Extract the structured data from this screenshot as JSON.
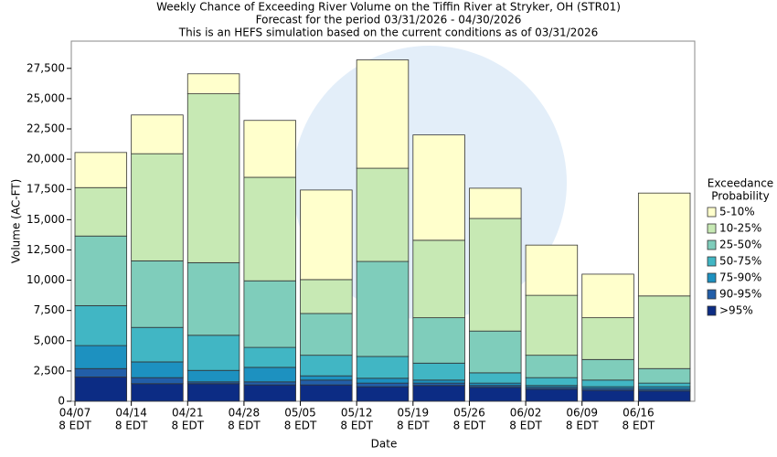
{
  "chart_data": {
    "type": "stacked_bar",
    "title": [
      "Weekly Chance of Exceeding River Volume on the Tiffin River at Stryker, OH (STR01)",
      "Forecast for the period 03/31/2026 - 04/30/2026",
      "This is an HEFS simulation based on the current conditions as of 03/31/2026"
    ],
    "xlabel": "Date",
    "ylabel": "Volume (AC-FT)",
    "legend_title": [
      "Exceedance",
      "Probability"
    ],
    "legend": "right",
    "grid": false,
    "categories": [
      [
        "04/07",
        "8 EDT"
      ],
      [
        "04/14",
        "8 EDT"
      ],
      [
        "04/21",
        "8 EDT"
      ],
      [
        "04/28",
        "8 EDT"
      ],
      [
        "05/05",
        "8 EDT"
      ],
      [
        "05/12",
        "8 EDT"
      ],
      [
        "05/19",
        "8 EDT"
      ],
      [
        "05/26",
        "8 EDT"
      ],
      [
        "06/02",
        "8 EDT"
      ],
      [
        "06/09",
        "8 EDT"
      ],
      [
        "06/16",
        "8 EDT"
      ]
    ],
    "ylim": [
      0,
      29750
    ],
    "yticks": [
      0,
      {
        "value": 2500,
        "label": "2,500"
      },
      {
        "value": 5000,
        "label": "5,000"
      },
      {
        "value": 7500,
        "label": "7,500"
      },
      {
        "value": 10000,
        "label": "10,000"
      },
      {
        "value": 12500,
        "label": "12,500"
      },
      {
        "value": 15000,
        "label": "15,000"
      },
      {
        "value": 17500,
        "label": "17,500"
      },
      {
        "value": 20000,
        "label": "20,000"
      },
      {
        "value": 22500,
        "label": "22,500"
      },
      {
        "value": 25000,
        "label": "25,000"
      },
      {
        "value": 27500,
        "label": "27,500"
      }
    ],
    "series": [
      {
        "name": ">95%",
        "color": "#0c2c84",
        "values": [
          2000,
          1450,
          1450,
          1350,
          1350,
          1200,
          1300,
          1150,
          1000,
          900,
          850
        ]
      },
      {
        "name": "90-95%",
        "color": "#225ea8",
        "values": [
          700,
          500,
          150,
          250,
          400,
          300,
          200,
          150,
          150,
          150,
          150
        ]
      },
      {
        "name": "75-90%",
        "color": "#1d91c0",
        "values": [
          1900,
          1300,
          950,
          1200,
          350,
          400,
          250,
          200,
          150,
          150,
          200
        ]
      },
      {
        "name": "50-75%",
        "color": "#41b6c4",
        "values": [
          3300,
          2850,
          2900,
          1650,
          1700,
          1800,
          1400,
          850,
          650,
          550,
          300
        ]
      },
      {
        "name": "25-50%",
        "color": "#7fcdbb",
        "values": [
          5750,
          5500,
          6000,
          5500,
          3450,
          7850,
          3750,
          3450,
          1850,
          1700,
          1200
        ]
      },
      {
        "name": "10-25%",
        "color": "#c7e9b4",
        "values": [
          4000,
          8850,
          13950,
          8550,
          2800,
          7700,
          6400,
          9300,
          4950,
          3450,
          6000
        ]
      },
      {
        "name": "5-10%",
        "color": "#ffffcc",
        "values": [
          2900,
          3200,
          1650,
          4700,
          7400,
          8950,
          8700,
          2500,
          4150,
          3600,
          8500
        ]
      }
    ]
  }
}
